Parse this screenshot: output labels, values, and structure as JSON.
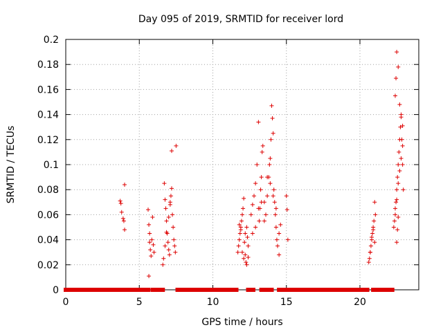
{
  "chart_data": {
    "type": "scatter",
    "title": "Day 095 of 2019, SRMTID for receiver lord",
    "xlabel": "GPS time / hours",
    "ylabel": "SRMTID / TECUs",
    "xlim": [
      0,
      24
    ],
    "ylim": [
      0,
      0.2
    ],
    "x_ticks": [
      0,
      5,
      10,
      15,
      20
    ],
    "x_tick_labels": [
      "0",
      "5",
      "10",
      "15",
      "20"
    ],
    "y_ticks": [
      0,
      0.02,
      0.04,
      0.06,
      0.08,
      0.1,
      0.12,
      0.14,
      0.16,
      0.18,
      0.2
    ],
    "y_tick_labels": [
      "0",
      "0.02",
      "0.04",
      "0.06",
      "0.08",
      "0.1",
      "0.12",
      "0.14",
      "0.16",
      "0.18",
      "0.2"
    ],
    "grid": true,
    "marker": "+",
    "color": "#dd0000",
    "series": [
      {
        "name": "SRMTID",
        "x": [
          3.7,
          3.75,
          3.8,
          3.9,
          3.95,
          4.0,
          4.0,
          5.6,
          5.65,
          5.7,
          5.7,
          5.75,
          5.8,
          5.85,
          5.9,
          5.95,
          6.0,
          5.65,
          6.6,
          6.65,
          6.7,
          6.75,
          6.8,
          6.85,
          6.9,
          6.95,
          7.0,
          7.05,
          7.1,
          7.15,
          7.2,
          7.25,
          7.3,
          7.35,
          7.4,
          7.45,
          7.5,
          6.75,
          6.85,
          7.0,
          7.1,
          7.2,
          11.7,
          11.75,
          11.8,
          11.85,
          11.9,
          11.95,
          12.0,
          12.05,
          12.1,
          12.15,
          12.2,
          12.25,
          12.3,
          12.35,
          12.4,
          11.8,
          11.9,
          12.0,
          12.1,
          12.2,
          12.3,
          12.4,
          12.6,
          12.7,
          12.8,
          12.9,
          13.0,
          13.1,
          13.15,
          13.2,
          13.25,
          13.3,
          13.35,
          13.4,
          13.5,
          13.6,
          13.7,
          13.8,
          13.85,
          13.9,
          13.95,
          14.0,
          14.05,
          14.1,
          14.15,
          14.2,
          14.25,
          14.3,
          14.35,
          14.4,
          14.5,
          14.6,
          12.7,
          12.9,
          13.1,
          13.3,
          13.5,
          13.7,
          13.9,
          14.1,
          14.3,
          14.5,
          15.0,
          15.05,
          15.1,
          20.6,
          20.65,
          20.7,
          20.75,
          20.8,
          20.85,
          20.9,
          20.95,
          21.0,
          21.05,
          20.7,
          20.8,
          20.9,
          21.0,
          22.3,
          22.35,
          22.4,
          22.45,
          22.5,
          22.55,
          22.6,
          22.65,
          22.7,
          22.75,
          22.8,
          22.85,
          22.9,
          22.95,
          22.4,
          22.45,
          22.5,
          22.6,
          22.7,
          22.8,
          22.9,
          22.4,
          22.5,
          22.6,
          22.7,
          22.8,
          22.9,
          22.5,
          22.55,
          22.6
        ],
        "y": [
          0.071,
          0.069,
          0.062,
          0.057,
          0.055,
          0.084,
          0.048,
          0.064,
          0.052,
          0.045,
          0.038,
          0.032,
          0.027,
          0.04,
          0.058,
          0.036,
          0.03,
          0.011,
          0.02,
          0.025,
          0.085,
          0.072,
          0.065,
          0.055,
          0.045,
          0.038,
          0.032,
          0.028,
          0.07,
          0.075,
          0.081,
          0.06,
          0.05,
          0.04,
          0.035,
          0.03,
          0.115,
          0.035,
          0.046,
          0.058,
          0.068,
          0.111,
          0.03,
          0.035,
          0.04,
          0.045,
          0.05,
          0.055,
          0.06,
          0.065,
          0.073,
          0.038,
          0.028,
          0.022,
          0.02,
          0.042,
          0.035,
          0.052,
          0.048,
          0.03,
          0.025,
          0.045,
          0.05,
          0.026,
          0.06,
          0.068,
          0.075,
          0.085,
          0.1,
          0.134,
          0.055,
          0.065,
          0.08,
          0.09,
          0.11,
          0.115,
          0.07,
          0.06,
          0.075,
          0.09,
          0.1,
          0.105,
          0.12,
          0.147,
          0.137,
          0.125,
          0.08,
          0.07,
          0.06,
          0.05,
          0.04,
          0.035,
          0.045,
          0.052,
          0.045,
          0.05,
          0.065,
          0.07,
          0.055,
          0.09,
          0.085,
          0.075,
          0.065,
          0.028,
          0.075,
          0.064,
          0.04,
          0.022,
          0.025,
          0.03,
          0.035,
          0.04,
          0.045,
          0.05,
          0.055,
          0.07,
          0.06,
          0.03,
          0.042,
          0.048,
          0.038,
          0.05,
          0.055,
          0.06,
          0.07,
          0.08,
          0.09,
          0.1,
          0.11,
          0.12,
          0.13,
          0.14,
          0.12,
          0.1,
          0.08,
          0.155,
          0.169,
          0.19,
          0.178,
          0.148,
          0.138,
          0.131,
          0.065,
          0.072,
          0.085,
          0.095,
          0.105,
          0.115,
          0.038,
          0.048,
          0.058
        ]
      },
      {
        "name": "zero-baseline",
        "x_ranges": [
          [
            0,
            5.6
          ],
          [
            5.9,
            6.4
          ],
          [
            6.5,
            6.6
          ],
          [
            7.6,
            11.6
          ],
          [
            12.4,
            12.55
          ],
          [
            12.65,
            12.75
          ],
          [
            13.3,
            13.45
          ],
          [
            13.6,
            13.7
          ],
          [
            13.85,
            14.0
          ],
          [
            14.5,
            14.6
          ],
          [
            14.75,
            20.5
          ],
          [
            20.9,
            21.1
          ],
          [
            21.2,
            22.2
          ]
        ],
        "y": 0
      }
    ]
  }
}
